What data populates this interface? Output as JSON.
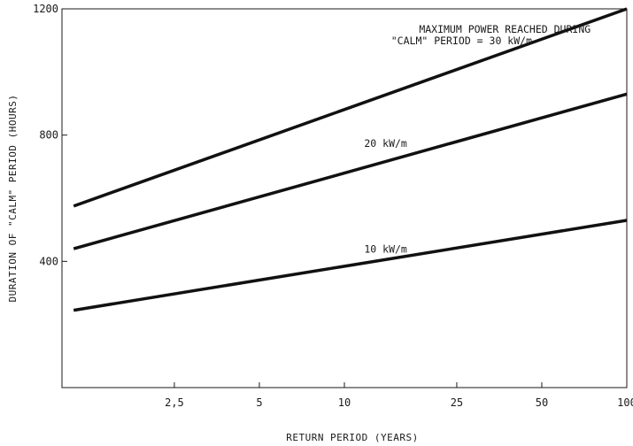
{
  "chart_data": {
    "type": "line",
    "x_scale": "log",
    "xlabel": "RETURN PERIOD  (YEARS)",
    "ylabel": "DURATION OF \"CALM\" PERIOD (HOURS)",
    "xlim": [
      1,
      100
    ],
    "ylim": [
      0,
      1200
    ],
    "x_ticks": [
      2.5,
      5,
      10,
      25,
      50,
      100
    ],
    "x_tick_labels": [
      "2,5",
      "5",
      "10",
      "25",
      "50",
      "100"
    ],
    "y_ticks": [
      400,
      800,
      1200
    ],
    "y_tick_labels": [
      "400",
      "800",
      "1200"
    ],
    "grid": false,
    "legend": "none",
    "series": [
      {
        "name": "30 kW/m",
        "x": [
          1.1,
          100
        ],
        "y": [
          575,
          1200
        ]
      },
      {
        "name": "20 kW/m",
        "x": [
          1.1,
          100
        ],
        "y": [
          440,
          930
        ]
      },
      {
        "name": "10 kW/m",
        "x": [
          1.1,
          100
        ],
        "y": [
          245,
          530
        ]
      }
    ],
    "annotations": [
      {
        "text": "MAXIMUM POWER REACHED DURING",
        "series": "30 kW/m"
      },
      {
        "text": "\"CALM\" PERIOD = 30 kW/m",
        "series": "30 kW/m"
      },
      {
        "text": "20 kW/m",
        "series": "20 kW/m"
      },
      {
        "text": "10 kW/m",
        "series": "10 kW/m"
      }
    ]
  }
}
